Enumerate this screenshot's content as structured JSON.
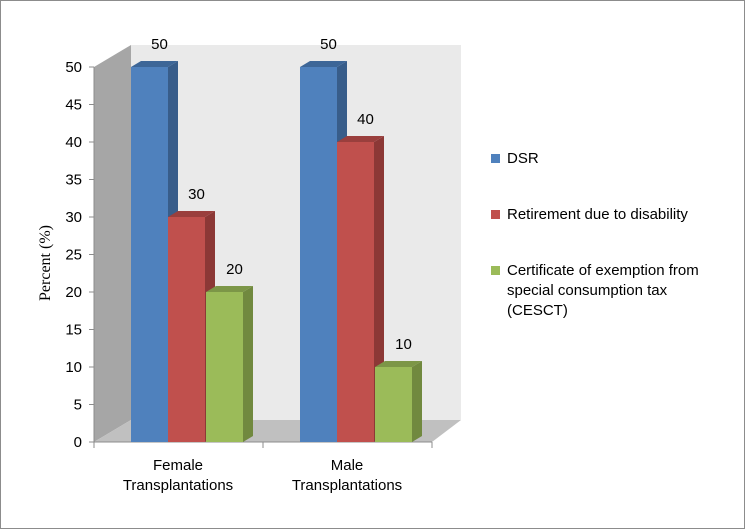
{
  "chart_data": {
    "type": "bar",
    "ylabel": "Percent (%)",
    "xlabel": "",
    "ylim": [
      0,
      50
    ],
    "yticks": [
      0,
      5,
      10,
      15,
      20,
      25,
      30,
      35,
      40,
      45,
      50
    ],
    "categories": [
      "Female Transplantations",
      "Male Transplantations"
    ],
    "categories_lines": [
      [
        "Female",
        "Transplantations"
      ],
      [
        "Male",
        "Transplantations"
      ]
    ],
    "series": [
      {
        "name": "DSR",
        "values": [
          50,
          50
        ]
      },
      {
        "name": "Retirement due to disability",
        "values": [
          30,
          40
        ]
      },
      {
        "name": "Certificate of exemption from special consumption tax (CESCT)",
        "values": [
          20,
          10
        ]
      }
    ],
    "legend_lines": [
      [
        "DSR"
      ],
      [
        "Retirement due to disability"
      ],
      [
        "Certificate of exemption from",
        "special consumption tax",
        "(CESCT)"
      ]
    ],
    "legend_position": "right",
    "grid": false,
    "style": "3d-clustered-column"
  },
  "colors": {
    "series": [
      "#4f81bd",
      "#c0504d",
      "#9bbb59"
    ],
    "series_side": [
      "#385d8a",
      "#8c3836",
      "#71893f"
    ],
    "series_top": [
      "#3d6697",
      "#9a3f3d",
      "#7c9647"
    ],
    "wall": "#eaeaea",
    "side_wall": "#a6a6a6",
    "floor": "#c0c0c0"
  }
}
